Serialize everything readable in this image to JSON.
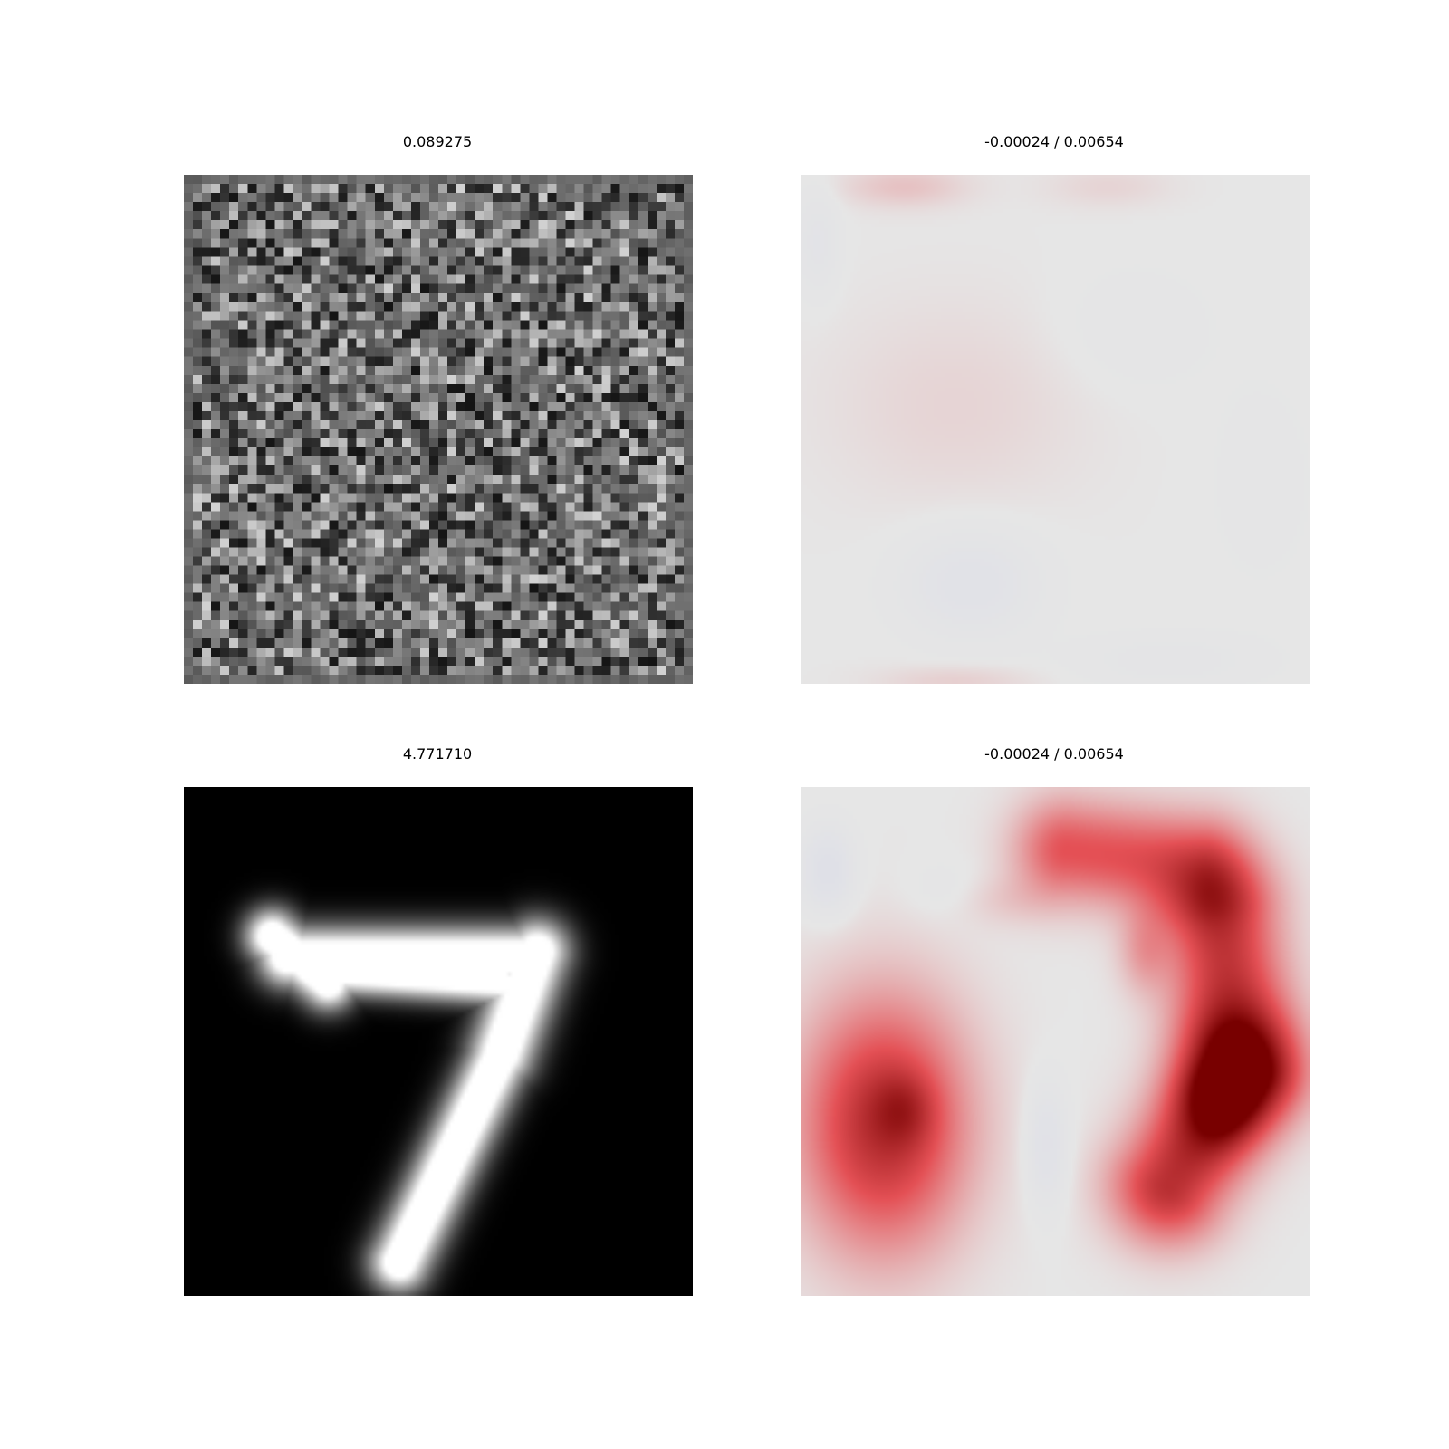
{
  "panels": {
    "top_left": {
      "title": "0.089275",
      "kind": "noise image",
      "colormap": "gray"
    },
    "top_right": {
      "title": "-0.00024 / 0.00654",
      "kind": "attribution map",
      "colormap": "seismic"
    },
    "bottom_left": {
      "title": "4.771710",
      "kind": "handwritten digit 7",
      "colormap": "gray"
    },
    "bottom_right": {
      "title": "-0.00024 / 0.00654",
      "kind": "attribution map",
      "colormap": "seismic"
    }
  },
  "colors": {
    "background": "#ffffff",
    "neutral": "#e6e6e6",
    "positive": "#8b0000",
    "negative": "#c8cbe4"
  }
}
